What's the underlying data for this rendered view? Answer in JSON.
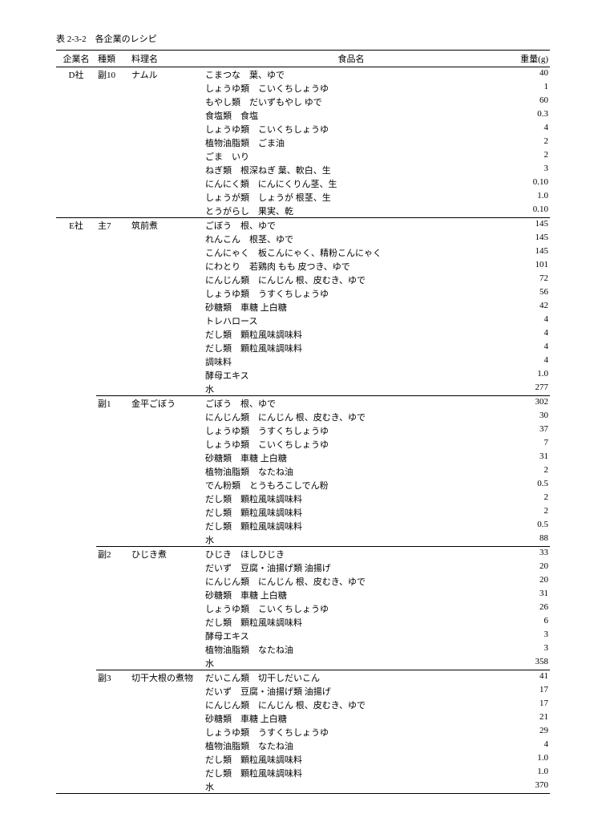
{
  "title": "表 2-3-2　各企業のレシピ",
  "headers": {
    "company": "企業名",
    "kind": "種類",
    "dish": "料理名",
    "food": "食品名",
    "weight": "重量(g)"
  },
  "groups": [
    {
      "company": "D社",
      "recipes": [
        {
          "kind": "副10",
          "dish": "ナムル",
          "ingredients": [
            {
              "food": "こまつな　葉、ゆで",
              "weight": "40"
            },
            {
              "food": "しょうゆ類　こいくちしょうゆ",
              "weight": "1"
            },
            {
              "food": "もやし類　だいずもやし ゆで",
              "weight": "60"
            },
            {
              "food": "食塩類　食塩",
              "weight": "0.3"
            },
            {
              "food": "しょうゆ類　こいくちしょうゆ",
              "weight": "4"
            },
            {
              "food": "植物油脂類　ごま油",
              "weight": "2"
            },
            {
              "food": "ごま　いり",
              "weight": "2"
            },
            {
              "food": "ねぎ類　根深ねぎ 葉、軟白、生",
              "weight": "3"
            },
            {
              "food": "にんにく類　にんにくりん茎、生",
              "weight": "0.10"
            },
            {
              "food": "しょうが類　しょうが 根茎、生",
              "weight": "1.0"
            },
            {
              "food": "とうがらし　果実、乾",
              "weight": "0.10"
            }
          ]
        }
      ]
    },
    {
      "company": "E社",
      "recipes": [
        {
          "kind": "主7",
          "dish": "筑前煮",
          "ingredients": [
            {
              "food": "ごぼう　根、ゆで",
              "weight": "145"
            },
            {
              "food": "れんこん　根茎、ゆで",
              "weight": "145"
            },
            {
              "food": "こんにゃく　板こんにゃく、精粉こんにゃく",
              "weight": "145"
            },
            {
              "food": "にわとり　若鶏肉 もも 皮つき、ゆで",
              "weight": "101"
            },
            {
              "food": "にんじん類　にんじん 根、皮むき、ゆで",
              "weight": "72"
            },
            {
              "food": "しょうゆ類　うすくちしょうゆ",
              "weight": "56"
            },
            {
              "food": "砂糖類　車糖 上白糖",
              "weight": "42"
            },
            {
              "food": "トレハロース",
              "weight": "4"
            },
            {
              "food": "だし類　顆粒風味調味料",
              "weight": "4"
            },
            {
              "food": "だし類　顆粒風味調味料",
              "weight": "4"
            },
            {
              "food": "調味料",
              "weight": "4"
            },
            {
              "food": "酵母エキス",
              "weight": "1.0"
            },
            {
              "food": "水",
              "weight": "277"
            }
          ]
        },
        {
          "kind": "副1",
          "dish": "金平ごぼう",
          "ingredients": [
            {
              "food": "ごぼう　根、ゆで",
              "weight": "302"
            },
            {
              "food": "にんじん類　にんじん 根、皮むき、ゆで",
              "weight": "30"
            },
            {
              "food": "しょうゆ類　うすくちしょうゆ",
              "weight": "37"
            },
            {
              "food": "しょうゆ類　こいくちしょうゆ",
              "weight": "7"
            },
            {
              "food": "砂糖類　車糖 上白糖",
              "weight": "31"
            },
            {
              "food": "植物油脂類　なたね油",
              "weight": "2"
            },
            {
              "food": "でん粉類　とうもろこしでん粉",
              "weight": "0.5"
            },
            {
              "food": "だし類　顆粒風味調味料",
              "weight": "2"
            },
            {
              "food": "だし類　顆粒風味調味料",
              "weight": "2"
            },
            {
              "food": "だし類　顆粒風味調味料",
              "weight": "0.5"
            },
            {
              "food": "水",
              "weight": "88"
            }
          ]
        },
        {
          "kind": "副2",
          "dish": "ひじき煮",
          "ingredients": [
            {
              "food": "ひじき　ほしひじき",
              "weight": "33"
            },
            {
              "food": "だいず　豆腐・油揚げ類 油揚げ",
              "weight": "20"
            },
            {
              "food": "にんじん類　にんじん 根、皮むき、ゆで",
              "weight": "20"
            },
            {
              "food": "砂糖類　車糖 上白糖",
              "weight": "31"
            },
            {
              "food": "しょうゆ類　こいくちしょうゆ",
              "weight": "26"
            },
            {
              "food": "だし類　顆粒風味調味料",
              "weight": "6"
            },
            {
              "food": "酵母エキス",
              "weight": "3"
            },
            {
              "food": "植物油脂類　なたね油",
              "weight": "3"
            },
            {
              "food": "水",
              "weight": "358"
            }
          ]
        },
        {
          "kind": "副3",
          "dish": "切干大根の煮物",
          "ingredients": [
            {
              "food": "だいこん類　切干しだいこん",
              "weight": "41"
            },
            {
              "food": "だいず　豆腐・油揚げ類 油揚げ",
              "weight": "17"
            },
            {
              "food": "にんじん類　にんじん 根、皮むき、ゆで",
              "weight": "17"
            },
            {
              "food": "砂糖類　車糖 上白糖",
              "weight": "21"
            },
            {
              "food": "しょうゆ類　うすくちしょうゆ",
              "weight": "29"
            },
            {
              "food": "植物油脂類　なたね油",
              "weight": "4"
            },
            {
              "food": "だし類　顆粒風味調味料",
              "weight": "1.0"
            },
            {
              "food": "だし類　顆粒風味調味料",
              "weight": "1.0"
            },
            {
              "food": "水",
              "weight": "370"
            }
          ]
        }
      ]
    }
  ]
}
